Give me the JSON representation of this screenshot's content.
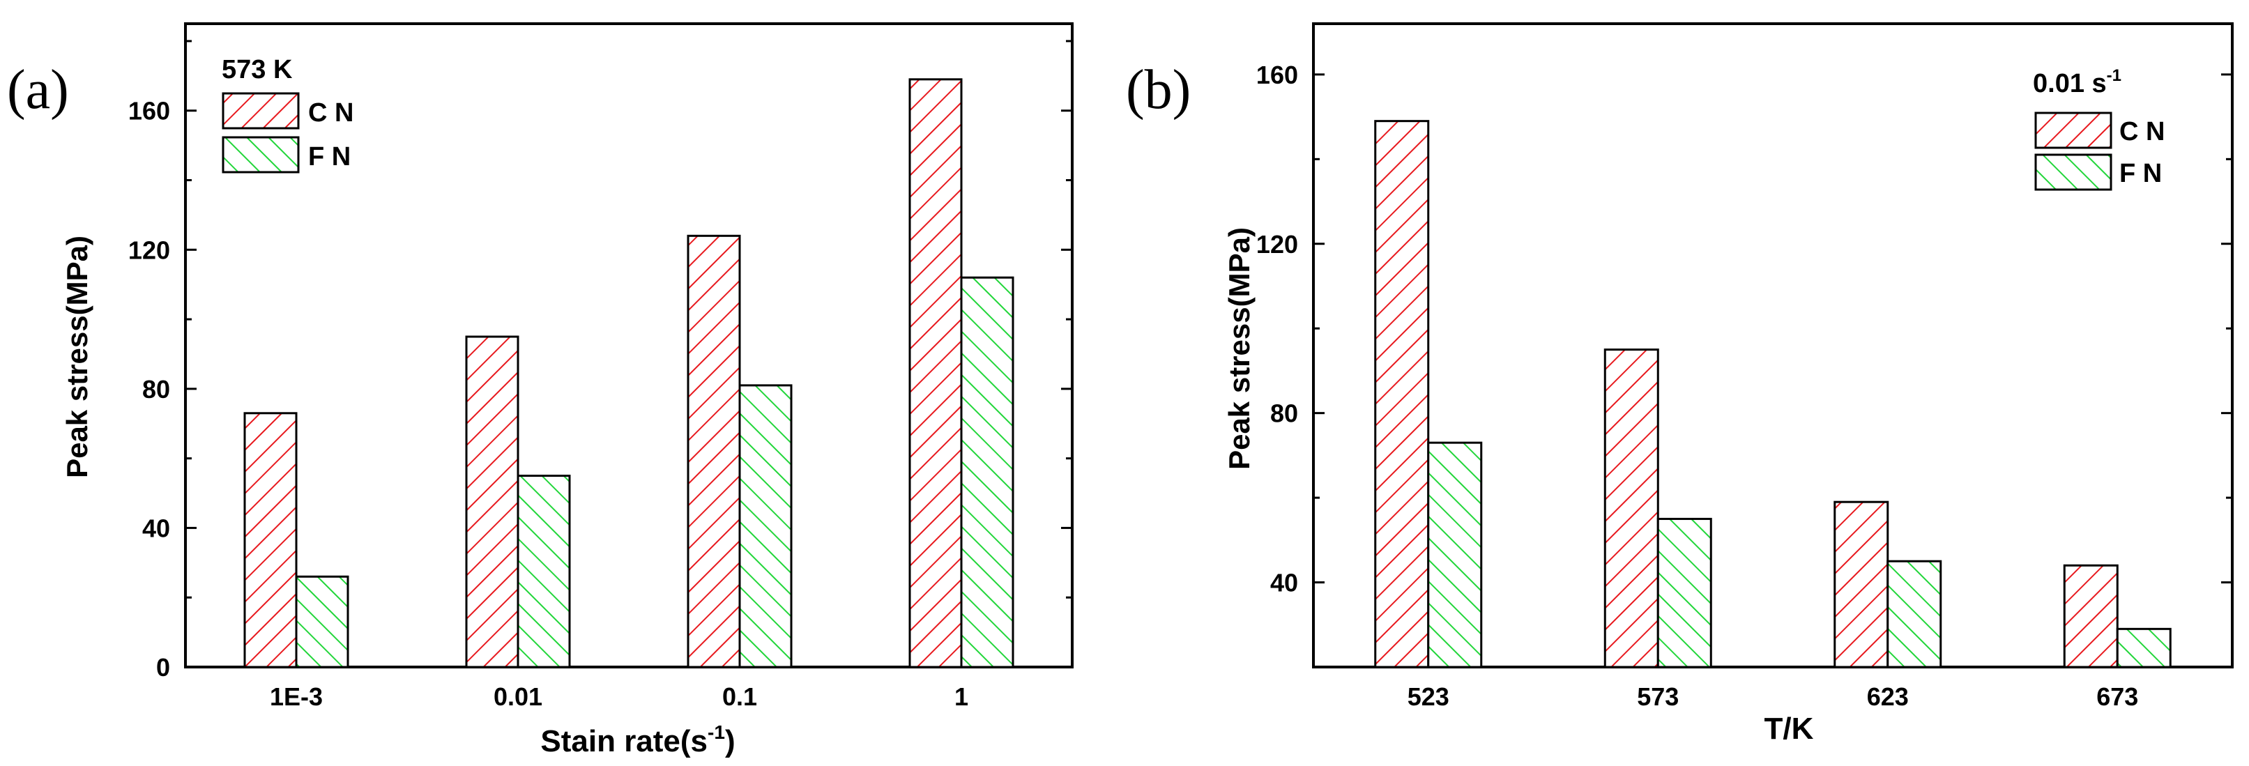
{
  "chart_data": [
    {
      "type": "bar",
      "panel_label": "(a)",
      "title": "",
      "xlabel": "Stain rate(s",
      "xlabel_sup": "-1",
      "xlabel_end": ")",
      "ylabel": "Peak stress(MPa)",
      "categories": [
        "1E-3",
        "0.01",
        "0.1",
        "1"
      ],
      "ylim": [
        0,
        185
      ],
      "yticks": [
        0,
        40,
        80,
        120,
        160
      ],
      "legend": {
        "title": "573 K",
        "title_sup": "",
        "position": "top-left",
        "labels": [
          "C N",
          "F N"
        ]
      },
      "series": [
        {
          "name": "C N",
          "color": "#e8191e",
          "values": [
            73,
            95,
            124,
            169
          ]
        },
        {
          "name": "F N",
          "color": "#22d63a",
          "values": [
            26,
            55,
            81,
            112
          ]
        }
      ]
    },
    {
      "type": "bar",
      "panel_label": "(b)",
      "title": "",
      "xlabel": "T/K",
      "xlabel_sup": "",
      "xlabel_end": "",
      "ylabel": "Peak stress(MPa)",
      "categories": [
        "523",
        "573",
        "623",
        "673"
      ],
      "ylim": [
        20,
        172
      ],
      "yticks": [
        40,
        80,
        120,
        160
      ],
      "legend": {
        "title": "0.01 s",
        "title_sup": "-1",
        "position": "top-right",
        "labels": [
          "C N",
          "F N"
        ]
      },
      "series": [
        {
          "name": "C N",
          "color": "#e8191e",
          "values": [
            149,
            95,
            59,
            44
          ]
        },
        {
          "name": "F N",
          "color": "#22d63a",
          "values": [
            73,
            55,
            45,
            29
          ]
        }
      ]
    }
  ]
}
